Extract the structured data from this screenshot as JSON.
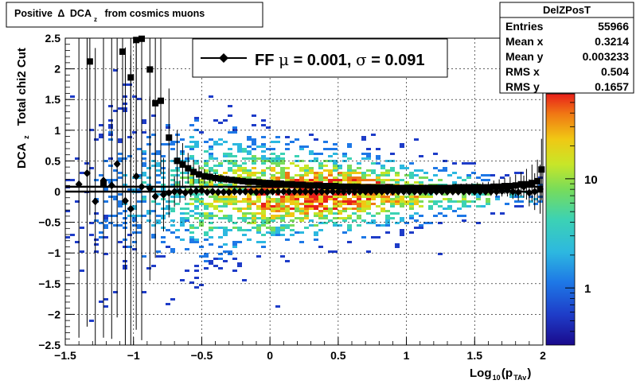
{
  "title_box": {
    "title_text": "Positive",
    "delta_symbol": "Δ",
    "dca_text": "DCA",
    "sub_z": "z",
    "title_rest": "from cosmics muons"
  },
  "stats_box": {
    "name": "DelZPosT",
    "rows": [
      {
        "label": "Entries",
        "value": "55966"
      },
      {
        "label": "Mean x",
        "value": "0.3214"
      },
      {
        "label": "Mean y",
        "value": "0.003233"
      },
      {
        "label": "RMS x",
        "value": "0.504"
      },
      {
        "label": "RMS y",
        "value": "0.1657"
      }
    ]
  },
  "legend": {
    "prefix": "FF ",
    "mu_symbol": "μ",
    "mu_text": " =  0.001, ",
    "sigma_symbol": "σ",
    "sigma_text": " =   0.091"
  },
  "axes": {
    "xlabel_main": "Log",
    "xlabel_sub1": "10",
    "xlabel_mid": "(p",
    "xlabel_sub2": "TAv",
    "xlabel_end": ")",
    "ylabel_main": "DCA",
    "ylabel_sub": "z",
    "ylabel_rest": "Total chi2 Cut"
  },
  "colors": {
    "marker": "#000000",
    "palette_low": "#1a0a8c",
    "palette_mid": "#2db8e0",
    "palette_high": "#e8201a"
  },
  "chart_data": {
    "type": "scatter",
    "title": "Positive Δ DCA_z from cosmics muons",
    "xlabel": "Log10(p_TAv)",
    "ylabel": "DCA_z Total chi2 Cut",
    "xlim": [
      -1.5,
      2.0
    ],
    "ylim": [
      -2.5,
      2.5
    ],
    "xticks": [
      "−1.5",
      "−1",
      "−0.5",
      "0",
      "0.5",
      "1",
      "1.5",
      "2"
    ],
    "xtick_values": [
      -1.5,
      -1,
      -0.5,
      0,
      0.5,
      1,
      1.5,
      2
    ],
    "yticks": [
      "−2.5",
      "−2",
      "−1.5",
      "−1",
      "−0.5",
      "0",
      "0.5",
      "1",
      "1.5",
      "2",
      "2.5"
    ],
    "ytick_values": [
      -2.5,
      -2,
      -1.5,
      -1,
      -0.5,
      0,
      0.5,
      1,
      1.5,
      2,
      2.5
    ],
    "grid": true,
    "z_axis": {
      "scale": "log",
      "ticks": [
        "1",
        "10"
      ],
      "tick_values": [
        1,
        10
      ],
      "range": [
        0.3,
        60
      ]
    },
    "fit_lines_y": [
      0.08,
      0.0
    ],
    "series": [
      {
        "marker": "square",
        "x": [
          -1.32,
          -1.22,
          -1.08,
          -1.02,
          -0.98,
          -0.94,
          -0.88,
          -0.84,
          -0.8,
          -0.74,
          -0.68,
          -0.64,
          -0.6,
          -0.56,
          -0.52,
          -0.48,
          -0.44,
          -0.4,
          -0.36,
          -0.32,
          -0.28,
          -0.24,
          -0.2,
          -0.16,
          -0.12,
          -0.08,
          -0.04,
          0.0,
          0.04,
          0.08,
          0.12,
          0.16,
          0.2,
          0.24,
          0.28,
          0.32,
          0.36,
          0.4,
          0.44,
          0.48,
          0.52,
          0.56,
          0.6,
          0.64,
          0.68,
          0.72,
          0.76,
          0.8,
          0.84,
          0.88,
          0.92,
          0.96,
          1.0,
          1.04,
          1.08,
          1.12,
          1.16,
          1.2,
          1.24,
          1.28,
          1.32,
          1.36,
          1.4,
          1.44,
          1.48,
          1.52,
          1.56,
          1.6,
          1.64,
          1.68,
          1.72,
          1.76,
          1.8,
          1.84,
          1.88,
          1.92,
          1.96,
          1.99
        ],
        "y": [
          2.12,
          0.12,
          2.28,
          1.86,
          2.47,
          2.49,
          1.99,
          1.44,
          1.48,
          0.88,
          0.5,
          0.44,
          0.38,
          0.32,
          0.28,
          0.25,
          0.24,
          0.22,
          0.21,
          0.2,
          0.19,
          0.18,
          0.17,
          0.16,
          0.16,
          0.15,
          0.14,
          0.14,
          0.13,
          0.13,
          0.12,
          0.12,
          0.11,
          0.11,
          0.1,
          0.1,
          0.1,
          0.09,
          0.09,
          0.09,
          0.08,
          0.08,
          0.08,
          0.08,
          0.07,
          0.07,
          0.07,
          0.07,
          0.07,
          0.07,
          0.06,
          0.06,
          0.06,
          0.06,
          0.06,
          0.06,
          0.06,
          0.06,
          0.06,
          0.06,
          0.06,
          0.07,
          0.07,
          0.07,
          0.07,
          0.07,
          0.07,
          0.07,
          0.08,
          0.08,
          0.09,
          0.09,
          0.1,
          0.12,
          0.12,
          0.14,
          0.17,
          0.36
        ],
        "yerr": [
          2.5,
          2.5,
          2.5,
          2.5,
          2.5,
          2.5,
          2.0,
          1.5,
          1.2,
          0.8,
          0.5,
          0.35,
          0.25,
          0.2,
          0.15,
          0.12,
          0.1,
          0.08,
          0.07,
          0.06,
          0.05,
          0.05,
          0.04,
          0.04,
          0.03,
          0.03,
          0.03,
          0.03,
          0.03,
          0.03,
          0.03,
          0.03,
          0.03,
          0.03,
          0.03,
          0.03,
          0.03,
          0.03,
          0.03,
          0.03,
          0.03,
          0.03,
          0.03,
          0.03,
          0.03,
          0.03,
          0.03,
          0.03,
          0.03,
          0.03,
          0.03,
          0.03,
          0.03,
          0.03,
          0.04,
          0.04,
          0.04,
          0.04,
          0.05,
          0.05,
          0.05,
          0.06,
          0.06,
          0.07,
          0.07,
          0.08,
          0.08,
          0.09,
          0.1,
          0.12,
          0.13,
          0.15,
          0.18,
          0.2,
          0.25,
          0.3,
          0.35,
          0.5
        ]
      },
      {
        "marker": "diamond",
        "x": [
          -1.4,
          -1.34,
          -1.28,
          -1.22,
          -1.16,
          -1.12,
          -1.06,
          -1.02,
          -0.98,
          -0.94,
          -0.88,
          -0.84,
          -0.78,
          -0.74,
          -0.7,
          -0.66,
          -0.62,
          -0.58,
          -0.54,
          -0.5,
          -0.46,
          -0.42,
          -0.38,
          -0.34,
          -0.3,
          -0.26,
          -0.22,
          -0.18,
          -0.14,
          -0.1,
          -0.06,
          -0.02,
          0.02,
          0.06,
          0.1,
          0.14,
          0.18,
          0.22,
          0.26,
          0.3,
          0.34,
          0.38,
          0.42,
          0.46,
          0.5,
          0.54,
          0.58,
          0.62,
          0.66,
          0.7,
          0.74,
          0.78,
          0.82,
          0.86,
          0.9,
          0.94,
          0.98,
          1.02,
          1.06,
          1.1,
          1.14,
          1.18,
          1.22,
          1.26,
          1.3,
          1.34,
          1.38,
          1.42,
          1.46,
          1.5,
          1.54,
          1.58,
          1.62,
          1.66,
          1.7,
          1.74,
          1.78,
          1.82,
          1.86,
          1.9,
          1.94,
          1.98
        ],
        "y": [
          0.12,
          0.3,
          -0.16,
          0.18,
          0.1,
          0.45,
          -0.15,
          -0.28,
          0.25,
          0.08,
          0.05,
          -0.08,
          -0.05,
          -0.02,
          0.0,
          0.0,
          -0.02,
          0.0,
          0.01,
          0.02,
          -0.01,
          0.0,
          -0.01,
          -0.01,
          -0.01,
          0.0,
          0.0,
          0.0,
          0.0,
          -0.01,
          0.0,
          -0.01,
          0.0,
          0.0,
          0.0,
          0.0,
          0.0,
          0.0,
          0.0,
          0.0,
          0.0,
          0.0,
          0.0,
          0.0,
          0.0,
          0.0,
          0.0,
          0.0,
          0.0,
          0.0,
          0.0,
          0.0,
          0.0,
          0.0,
          0.0,
          0.0,
          0.0,
          0.0,
          0.0,
          0.0,
          0.0,
          0.0,
          0.0,
          0.0,
          0.0,
          0.0,
          0.0,
          0.0,
          0.0,
          0.0,
          0.0,
          0.0,
          0.0,
          0.0,
          0.01,
          0.02,
          0.0,
          -0.01,
          0.08,
          -0.02,
          0.0,
          0.04
        ],
        "yerr": [
          2.5,
          2.5,
          2.5,
          2.5,
          2.5,
          2.5,
          2.5,
          2.5,
          2.5,
          2.5,
          1.5,
          1.0,
          0.6,
          0.4,
          0.25,
          0.18,
          0.12,
          0.09,
          0.07,
          0.05,
          0.04,
          0.04,
          0.03,
          0.03,
          0.02,
          0.02,
          0.02,
          0.02,
          0.02,
          0.02,
          0.02,
          0.02,
          0.02,
          0.02,
          0.02,
          0.02,
          0.02,
          0.02,
          0.02,
          0.02,
          0.02,
          0.02,
          0.02,
          0.02,
          0.02,
          0.02,
          0.02,
          0.02,
          0.02,
          0.02,
          0.02,
          0.02,
          0.02,
          0.02,
          0.02,
          0.02,
          0.02,
          0.02,
          0.02,
          0.02,
          0.03,
          0.03,
          0.03,
          0.03,
          0.03,
          0.04,
          0.04,
          0.04,
          0.05,
          0.05,
          0.06,
          0.06,
          0.07,
          0.08,
          0.09,
          0.1,
          0.12,
          0.14,
          0.18,
          0.22,
          0.3,
          0.4
        ]
      }
    ]
  }
}
